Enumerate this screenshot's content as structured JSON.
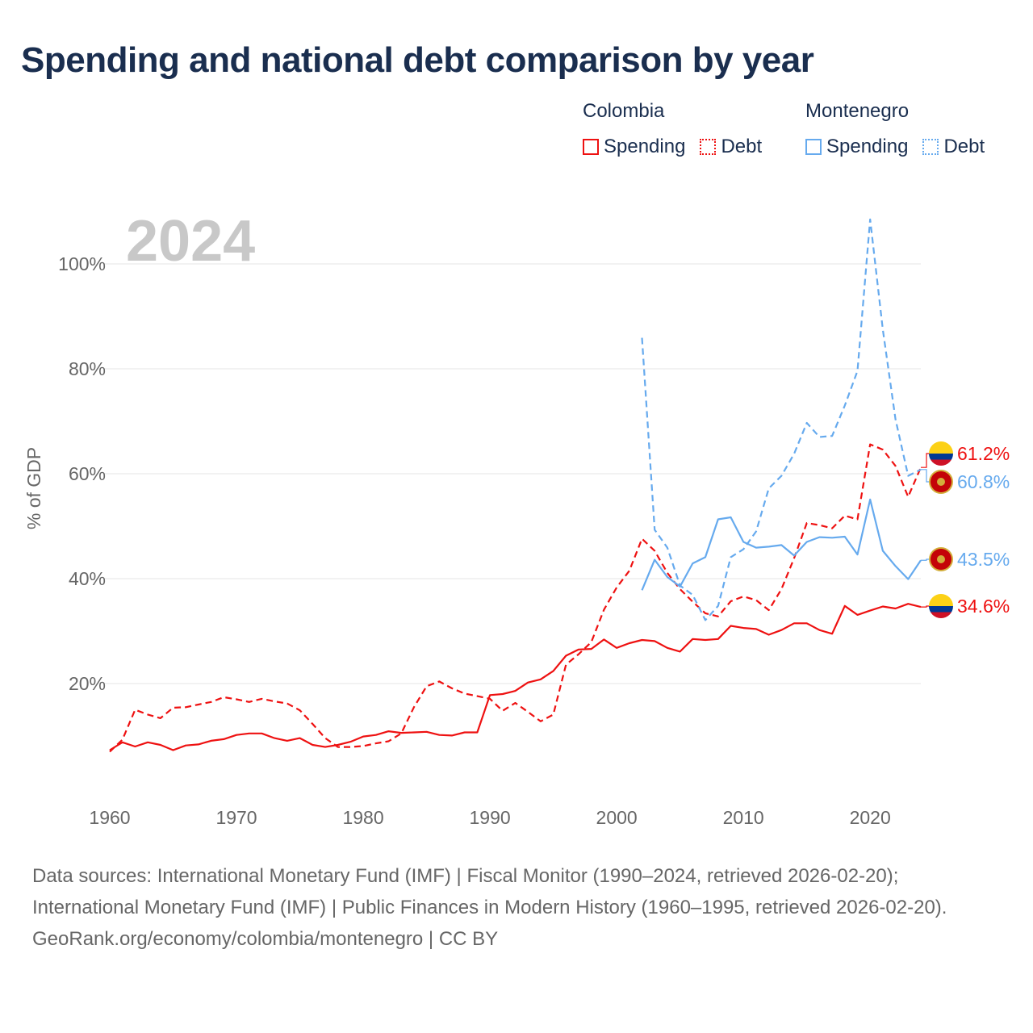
{
  "title": "Spending and national debt comparison by year",
  "legend": {
    "colombia": {
      "country": "Colombia",
      "spending": "Spending",
      "debt": "Debt",
      "color": "#ee1111"
    },
    "montenegro": {
      "country": "Montenegro",
      "spending": "Spending",
      "debt": "Debt",
      "color": "#66aaee"
    }
  },
  "footer": {
    "sources": "Data sources: International Monetary Fund (IMF) | Fiscal Monitor (1990–2024, retrieved 2026-02-20); International Monetary Fund (IMF) | Public Finances in Modern History (1960–1995, retrieved 2026-02-20).",
    "credit": "GeoRank.org/economy/colombia/montenegro | CC BY"
  },
  "chart_data": {
    "type": "line",
    "title": "Spending and national debt comparison by year",
    "year_label": "2024",
    "ylabel": "% of GDP",
    "xlabel": "",
    "xlim": [
      1960,
      2024
    ],
    "ylim": [
      0,
      110
    ],
    "xticks": [
      1960,
      1970,
      1980,
      1990,
      2000,
      2010,
      2020
    ],
    "yticks": [
      20,
      40,
      60,
      80,
      100
    ],
    "ytick_labels": [
      "20%",
      "40%",
      "60%",
      "80%",
      "100%"
    ],
    "grid": true,
    "legend_position": "top-right",
    "series": [
      {
        "name": "Colombia Spending",
        "country": "Colombia",
        "metric": "Spending",
        "style": "solid",
        "color": "#ee1111",
        "x_start": 1960,
        "values": [
          7.3,
          8.8,
          8.0,
          8.8,
          8.3,
          7.3,
          8.2,
          8.4,
          9.1,
          9.4,
          10.2,
          10.5,
          10.5,
          9.6,
          9.1,
          9.6,
          8.3,
          7.9,
          8.3,
          8.9,
          9.9,
          10.2,
          10.9,
          10.6,
          10.7,
          10.8,
          10.2,
          10.1,
          10.7,
          10.7,
          17.8,
          18.0,
          18.6,
          20.2,
          20.8,
          22.4,
          25.3,
          26.5,
          26.6,
          28.4,
          26.8,
          27.7,
          28.3,
          28.1,
          26.8,
          26.1,
          28.5,
          28.3,
          28.5,
          31.0,
          30.6,
          30.4,
          29.3,
          30.2,
          31.5,
          31.5,
          30.2,
          29.5,
          34.8,
          33.1,
          33.9,
          34.7,
          34.3,
          35.2,
          34.6
        ],
        "end_label": "34.6%"
      },
      {
        "name": "Colombia Debt",
        "country": "Colombia",
        "metric": "Debt",
        "style": "dashed",
        "color": "#ee1111",
        "x_start": 1960,
        "values": [
          7.0,
          9.3,
          15.0,
          14.1,
          13.4,
          15.4,
          15.5,
          16.0,
          16.5,
          17.4,
          17.0,
          16.5,
          17.1,
          16.6,
          16.2,
          14.9,
          12.3,
          9.6,
          7.9,
          7.9,
          8.1,
          8.6,
          9.0,
          10.5,
          15.5,
          19.5,
          20.4,
          19.1,
          18.1,
          17.6,
          17.1,
          14.8,
          16.3,
          14.6,
          12.8,
          14.1,
          23.6,
          25.6,
          27.9,
          34.1,
          38.3,
          41.5,
          47.6,
          45.3,
          41.1,
          38.0,
          35.6,
          33.4,
          32.8,
          35.7,
          36.6,
          35.9,
          34.0,
          38.0,
          43.9,
          50.6,
          50.2,
          49.6,
          52.0,
          51.3,
          65.6,
          64.6,
          61.5,
          55.6,
          61.2
        ],
        "end_label": "61.2%"
      },
      {
        "name": "Montenegro Spending",
        "country": "Montenegro",
        "metric": "Spending",
        "style": "solid",
        "color": "#66aaee",
        "x_start": 2002,
        "values": [
          37.8,
          43.6,
          40.3,
          38.5,
          42.9,
          44.1,
          51.3,
          51.7,
          47.0,
          45.9,
          46.1,
          46.4,
          44.4,
          47.0,
          47.9,
          47.8,
          48.0,
          44.6,
          55.1,
          45.3,
          42.4,
          39.9,
          43.5
        ],
        "end_label": "43.5%"
      },
      {
        "name": "Montenegro Debt",
        "country": "Montenegro",
        "metric": "Debt",
        "style": "dashed",
        "color": "#66aaee",
        "x_start": 2002,
        "values": [
          85.9,
          49.3,
          45.9,
          38.7,
          36.9,
          32.1,
          34.8,
          44.1,
          45.6,
          49.0,
          57.2,
          59.6,
          63.8,
          69.7,
          67.0,
          67.2,
          73.0,
          79.6,
          108.5,
          87.5,
          70.4,
          59.6,
          60.8
        ],
        "end_label": "60.8%"
      }
    ]
  }
}
